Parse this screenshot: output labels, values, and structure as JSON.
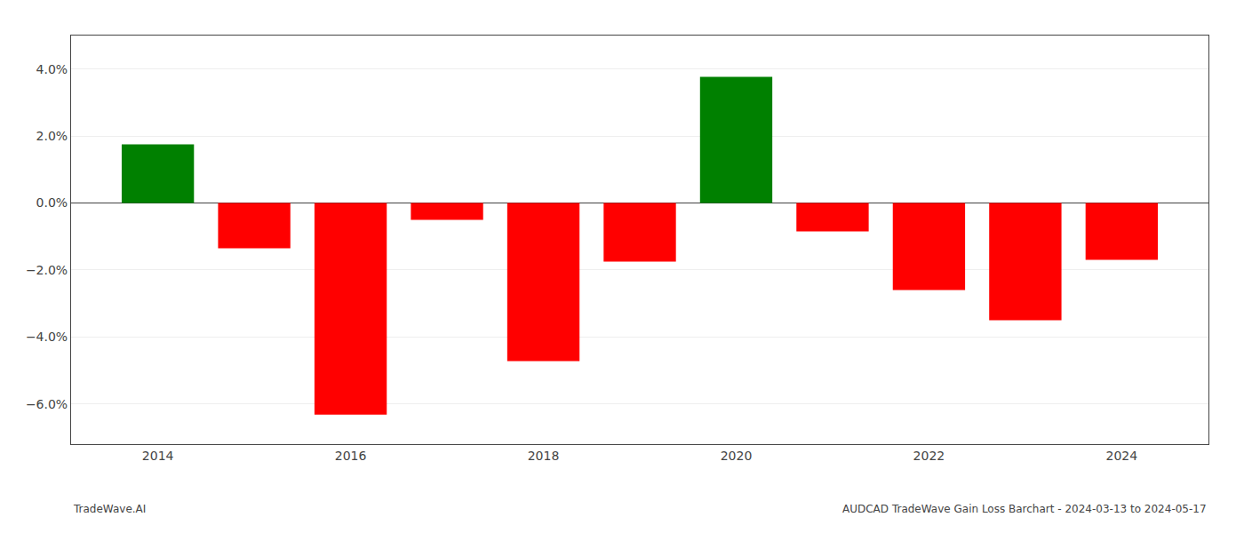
{
  "chart_data": {
    "type": "bar",
    "x": [
      2014,
      2015,
      2016,
      2017,
      2018,
      2019,
      2020,
      2021,
      2022,
      2023,
      2024
    ],
    "values": [
      1.75,
      -1.35,
      -6.32,
      -0.5,
      -4.72,
      -1.75,
      3.77,
      -0.85,
      -2.6,
      -3.5,
      -1.7
    ],
    "colors": [
      "#008000",
      "#FF0000",
      "#FF0000",
      "#FF0000",
      "#FF0000",
      "#FF0000",
      "#008000",
      "#FF0000",
      "#FF0000",
      "#FF0000",
      "#FF0000"
    ],
    "xlim": [
      2013.1,
      2024.9
    ],
    "xticks": [
      2014,
      2016,
      2018,
      2020,
      2022,
      2024
    ],
    "ylim": [
      -7.2,
      5.0
    ],
    "yticks": [
      {
        "value": -6.0,
        "label": "−6.0%"
      },
      {
        "value": -4.0,
        "label": "−4.0%"
      },
      {
        "value": -2.0,
        "label": "−2.0%"
      },
      {
        "value": 0.0,
        "label": "0.0%"
      },
      {
        "value": 2.0,
        "label": "2.0%"
      },
      {
        "value": 4.0,
        "label": "4.0%"
      }
    ],
    "grid": true,
    "annotations": [
      "TradeWave.AI",
      "AUDCAD TradeWave Gain Loss Barchart - 2024-03-13 to 2024-05-17"
    ]
  }
}
